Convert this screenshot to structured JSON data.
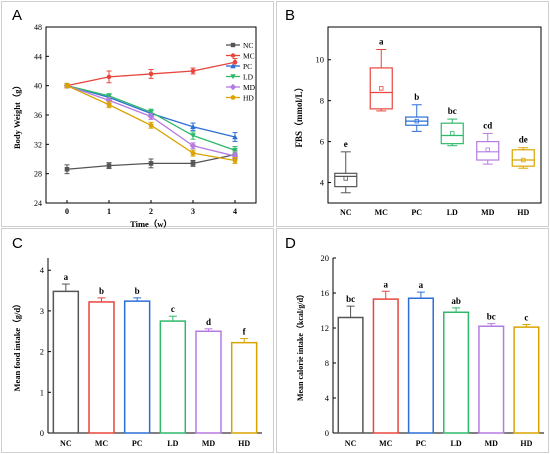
{
  "panels": {
    "A": {
      "letter": "A"
    },
    "B": {
      "letter": "B"
    },
    "C": {
      "letter": "C"
    },
    "D": {
      "letter": "D"
    }
  },
  "chart_data": [
    {
      "id": "A",
      "type": "line",
      "xlabel": "Time（w）",
      "ylabel": "Body Weight（g）",
      "x": [
        0,
        1,
        2,
        3,
        4
      ],
      "xticks": [
        "0",
        "1",
        "2",
        "3",
        "4"
      ],
      "yticks": [
        "24",
        "28",
        "32",
        "36",
        "40",
        "44",
        "48"
      ],
      "ylim": [
        24,
        48
      ],
      "xlim": [
        -0.5,
        4.5
      ],
      "legend_position": "top-right",
      "series": [
        {
          "name": "NC",
          "color": "#555555",
          "marker": "square",
          "values": [
            28.6,
            29.1,
            29.4,
            29.4,
            30.6
          ],
          "err": [
            0.6,
            0.4,
            0.6,
            0.4,
            0.5
          ]
        },
        {
          "name": "MC",
          "color": "#e8453c",
          "marker": "circle",
          "values": [
            40.0,
            41.2,
            41.6,
            42.0,
            43.2
          ],
          "err": [
            0.3,
            0.8,
            0.6,
            0.4,
            0.5
          ]
        },
        {
          "name": "PC",
          "color": "#2b6fd6",
          "marker": "triangle",
          "values": [
            40.0,
            38.4,
            36.2,
            34.4,
            33.0
          ],
          "err": [
            0.3,
            0.4,
            0.4,
            0.5,
            0.6
          ]
        },
        {
          "name": "LD",
          "color": "#2fb86a",
          "marker": "tri-down",
          "values": [
            40.0,
            38.6,
            36.4,
            33.2,
            31.2
          ],
          "err": [
            0.3,
            0.3,
            0.4,
            0.5,
            0.5
          ]
        },
        {
          "name": "MD",
          "color": "#b57be0",
          "marker": "diamond",
          "values": [
            40.0,
            38.0,
            35.8,
            31.8,
            30.4
          ],
          "err": [
            0.3,
            0.4,
            0.4,
            0.4,
            0.4
          ]
        },
        {
          "name": "HD",
          "color": "#d9a400",
          "marker": "pentagon",
          "values": [
            40.0,
            37.4,
            34.6,
            30.8,
            29.8
          ],
          "err": [
            0.3,
            0.4,
            0.4,
            0.4,
            0.4
          ]
        }
      ]
    },
    {
      "id": "B",
      "type": "box",
      "ylabel": "FBS（mmol/L）",
      "categories": [
        "NC",
        "MC",
        "PC",
        "LD",
        "MD",
        "HD"
      ],
      "yticks": [
        "4",
        "6",
        "8",
        "10"
      ],
      "ylim": [
        3,
        11.6
      ],
      "colors": [
        "#555555",
        "#e8453c",
        "#2b6fd6",
        "#2fb86a",
        "#b57be0",
        "#d9a400"
      ],
      "boxes": [
        {
          "min": 3.5,
          "q1": 3.8,
          "median": 4.3,
          "q3": 4.45,
          "max": 5.5,
          "mean": 4.2
        },
        {
          "min": 7.5,
          "q1": 7.6,
          "median": 8.4,
          "q3": 9.6,
          "max": 10.5,
          "mean": 8.6
        },
        {
          "min": 6.5,
          "q1": 6.8,
          "median": 7.0,
          "q3": 7.2,
          "max": 7.8,
          "mean": 7.0
        },
        {
          "min": 5.8,
          "q1": 5.9,
          "median": 6.3,
          "q3": 6.9,
          "max": 7.1,
          "mean": 6.4
        },
        {
          "min": 4.9,
          "q1": 5.1,
          "median": 5.5,
          "q3": 6.0,
          "max": 6.4,
          "mean": 5.6
        },
        {
          "min": 4.7,
          "q1": 4.8,
          "median": 5.1,
          "q3": 5.6,
          "max": 5.7,
          "mean": 5.1
        }
      ],
      "letters": [
        "e",
        "a",
        "b",
        "bc",
        "cd",
        "de"
      ]
    },
    {
      "id": "C",
      "type": "bar",
      "ylabel": "Mean food intake（g/d）",
      "categories": [
        "NC",
        "MC",
        "PC",
        "LD",
        "MD",
        "HD"
      ],
      "yticks": [
        "0",
        "1",
        "2",
        "3",
        "4"
      ],
      "ylim": [
        0,
        4.3
      ],
      "colors": [
        "#555555",
        "#e8453c",
        "#2b6fd6",
        "#2fb86a",
        "#b57be0",
        "#d9a400"
      ],
      "values": [
        3.48,
        3.22,
        3.24,
        2.75,
        2.5,
        2.22
      ],
      "err": [
        0.18,
        0.1,
        0.08,
        0.12,
        0.06,
        0.1
      ],
      "letters": [
        "a",
        "b",
        "b",
        "c",
        "d",
        "f"
      ]
    },
    {
      "id": "D",
      "type": "bar",
      "ylabel": "Mean calorie intake（kcal/g/d）",
      "categories": [
        "NC",
        "MC",
        "PC",
        "LD",
        "MD",
        "HD"
      ],
      "yticks": [
        "0",
        "4",
        "8",
        "12",
        "16",
        "20"
      ],
      "ylim": [
        0,
        20
      ],
      "colors": [
        "#555555",
        "#e8453c",
        "#2b6fd6",
        "#2fb86a",
        "#b57be0",
        "#d9a400"
      ],
      "values": [
        13.2,
        15.3,
        15.4,
        13.8,
        12.2,
        12.1
      ],
      "err": [
        1.3,
        0.9,
        0.7,
        0.5,
        0.3,
        0.3
      ],
      "letters": [
        "bc",
        "a",
        "a",
        "ab",
        "bc",
        "c"
      ]
    }
  ]
}
